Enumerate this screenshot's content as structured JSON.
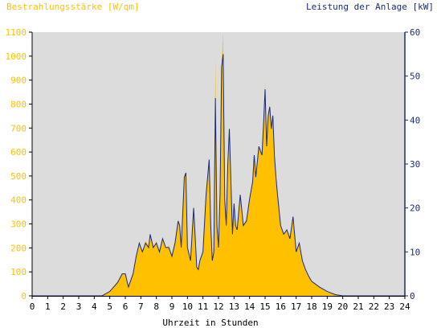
{
  "chart_data": {
    "type": "area",
    "title_left": "Bestrahlungsstärke [W/qm]",
    "title_right": "Leistung der Anlage [kW]",
    "xlabel": "Uhrzeit in Stunden",
    "xlim": [
      0,
      24
    ],
    "x_ticks": [
      "0",
      "1",
      "2",
      "3",
      "4",
      "5",
      "6",
      "7",
      "8",
      "9",
      "10",
      "11",
      "12",
      "13",
      "14",
      "15",
      "16",
      "17",
      "18",
      "19",
      "20",
      "21",
      "22",
      "23",
      "24"
    ],
    "y_left": {
      "range": [
        0,
        1100
      ],
      "ticks": [
        "0",
        "100",
        "200",
        "300",
        "400",
        "500",
        "600",
        "700",
        "800",
        "900",
        "1000",
        "1100"
      ]
    },
    "y_right": {
      "range": [
        0,
        60
      ],
      "ticks": [
        "0",
        "10",
        "20",
        "30",
        "40",
        "50",
        "60"
      ]
    },
    "grid": false,
    "colors": {
      "irradiance": "#ffc000",
      "power": "#1a2a7a",
      "plot_bg": "#dcdcdc",
      "axis": "#000000"
    },
    "x": [
      0,
      4.5,
      5,
      5.5,
      5.8,
      6,
      6.2,
      6.3,
      6.5,
      6.7,
      6.9,
      7,
      7.1,
      7.3,
      7.5,
      7.6,
      7.8,
      8,
      8.2,
      8.4,
      8.6,
      8.8,
      9,
      9.2,
      9.4,
      9.5,
      9.6,
      9.8,
      9.9,
      10,
      10.2,
      10.4,
      10.6,
      10.7,
      10.8,
      11,
      11.2,
      11.4,
      11.5,
      11.6,
      11.7,
      11.8,
      11.9,
      12,
      12.1,
      12.2,
      12.3,
      12.4,
      12.5,
      12.6,
      12.7,
      12.8,
      12.9,
      13,
      13.1,
      13.2,
      13.4,
      13.6,
      13.8,
      14,
      14.2,
      14.3,
      14.4,
      14.6,
      14.8,
      14.9,
      15,
      15.1,
      15.2,
      15.3,
      15.4,
      15.5,
      15.6,
      15.7,
      15.8,
      16,
      16.2,
      16.4,
      16.6,
      16.8,
      17,
      17.2,
      17.4,
      17.6,
      17.8,
      18,
      18.5,
      19,
      19.5,
      20,
      24
    ],
    "series": [
      {
        "name": "Bestrahlungsstärke [W/qm]",
        "axis": "left",
        "values": [
          0,
          0,
          20,
          60,
          90,
          95,
          40,
          60,
          100,
          160,
          220,
          200,
          180,
          230,
          210,
          260,
          200,
          230,
          180,
          240,
          200,
          210,
          170,
          220,
          320,
          300,
          200,
          490,
          510,
          200,
          150,
          380,
          120,
          110,
          150,
          190,
          420,
          560,
          300,
          150,
          180,
          990,
          300,
          200,
          420,
          960,
          1100,
          400,
          300,
          550,
          700,
          480,
          250,
          380,
          300,
          270,
          420,
          300,
          320,
          400,
          480,
          580,
          500,
          620,
          580,
          720,
          890,
          620,
          760,
          800,
          700,
          760,
          580,
          490,
          430,
          300,
          250,
          280,
          240,
          330,
          180,
          220,
          140,
          110,
          80,
          60,
          35,
          15,
          5,
          0,
          0
        ]
      },
      {
        "name": "Leistung der Anlage [kW]",
        "axis": "right",
        "values": [
          0,
          0,
          1,
          3,
          5,
          5,
          2,
          3,
          5,
          9,
          12,
          11,
          10,
          12,
          11,
          14,
          11,
          12,
          10,
          13,
          11,
          11,
          9,
          12,
          17,
          16,
          11,
          27,
          28,
          11,
          8,
          20,
          6.5,
          6,
          8,
          10,
          23,
          31,
          16,
          8,
          10,
          45,
          16,
          11,
          23,
          52,
          55,
          22,
          16,
          30,
          38,
          26,
          14,
          21,
          16,
          15,
          23,
          16,
          17,
          22,
          26,
          32,
          27,
          34,
          32,
          39,
          47,
          34,
          41,
          43,
          38,
          41,
          32,
          27,
          23,
          16,
          14,
          15,
          13,
          18,
          10,
          12,
          8,
          6,
          4.5,
          3.3,
          2,
          1,
          0.3,
          0,
          0
        ]
      }
    ]
  }
}
